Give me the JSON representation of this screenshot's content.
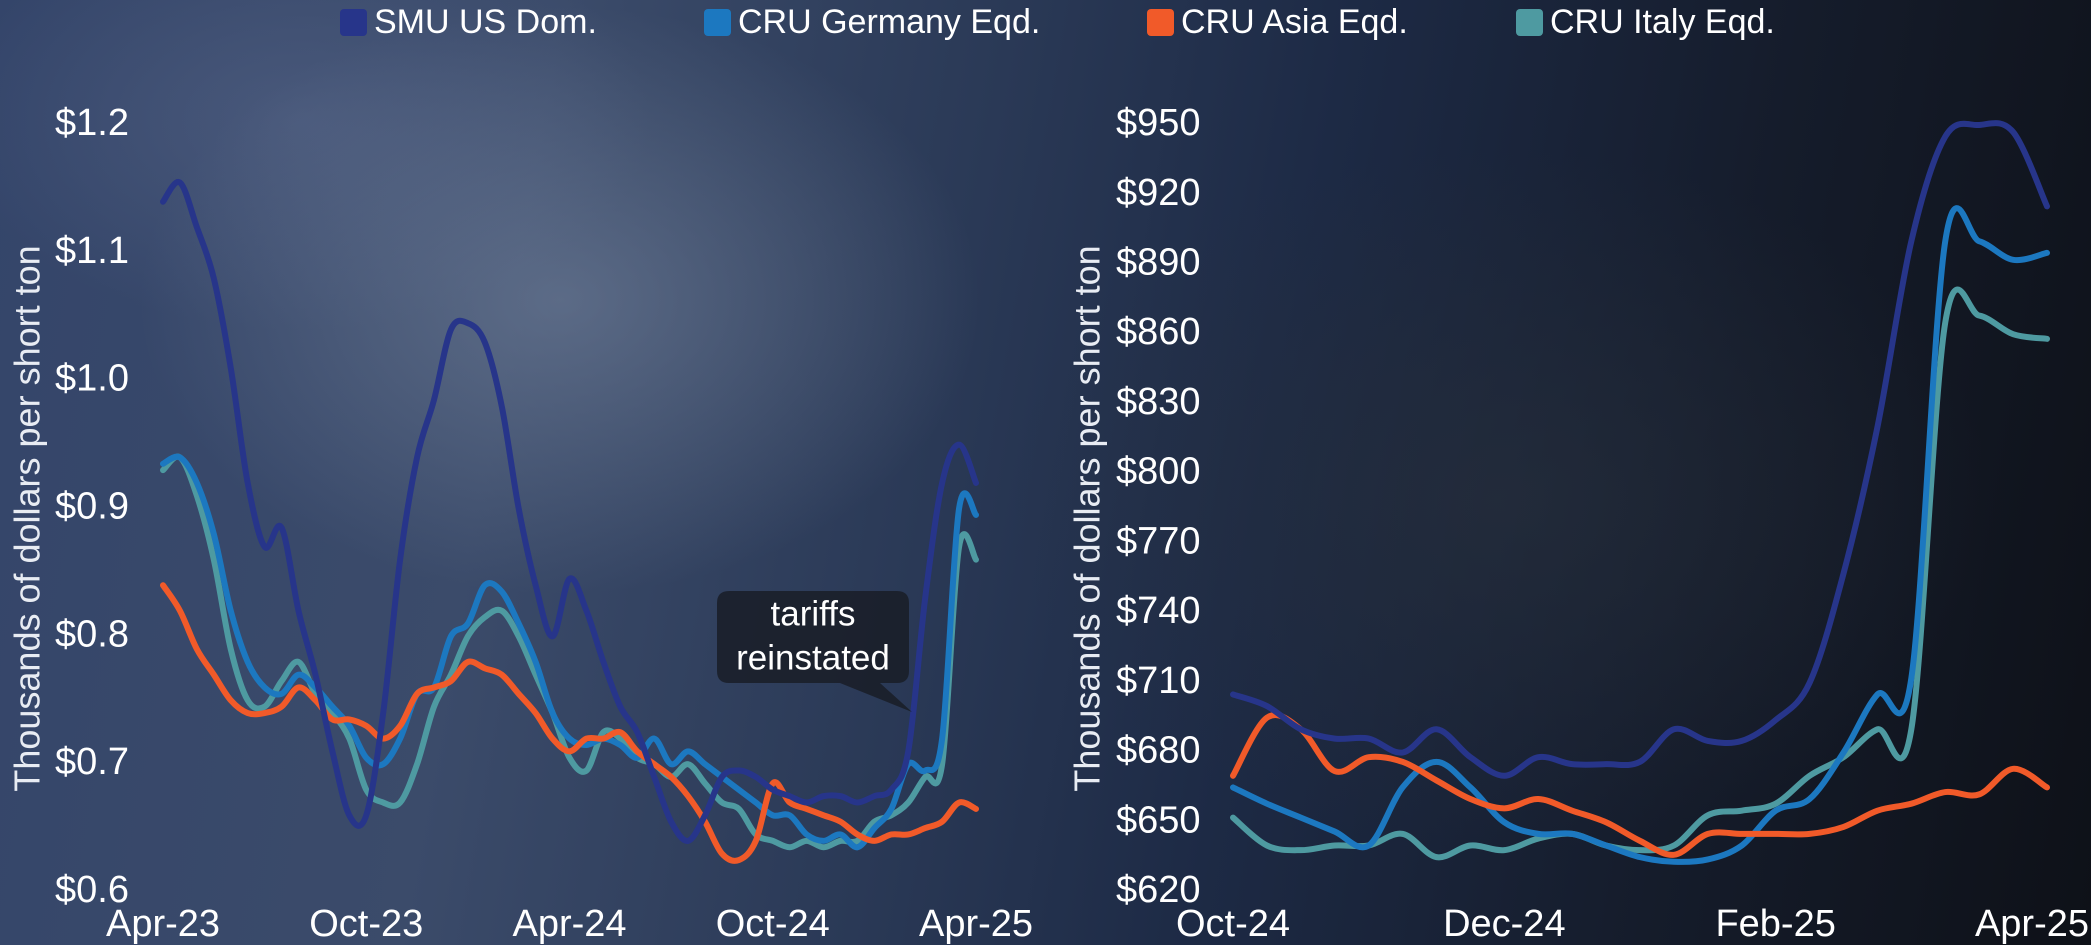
{
  "legend": [
    {
      "name": "SMU US Dom.",
      "color": "#27358a"
    },
    {
      "name": "CRU Germany Eqd.",
      "color": "#1c78c0"
    },
    {
      "name": "CRU Asia Eqd.",
      "color": "#f15a29"
    },
    {
      "name": "CRU Italy Eqd.",
      "color": "#4e9aa1"
    }
  ],
  "chart_data": [
    {
      "type": "line",
      "y_label": "Thousands of dollars per short ton",
      "annotation": [
        "tariffs",
        "reinstated"
      ],
      "x": [
        0,
        0.5,
        1,
        1.5,
        2,
        2.5,
        3,
        3.5,
        4,
        4.5,
        5,
        5.5,
        6,
        6.5,
        7,
        7.5,
        8,
        8.5,
        9,
        9.5,
        10,
        10.5,
        11,
        11.5,
        12,
        12.5,
        13,
        13.5,
        14,
        14.5,
        15,
        15.5,
        16,
        16.5,
        17,
        17.5,
        18,
        18.5,
        19,
        19.5,
        20,
        20.5,
        21,
        21.5,
        22,
        22.5,
        23,
        23.5,
        24
      ],
      "xlim": [
        0,
        24
      ],
      "xticks": [
        {
          "value": 0,
          "label": "Apr-23"
        },
        {
          "value": 6,
          "label": "Oct-23"
        },
        {
          "value": 12,
          "label": "Apr-24"
        },
        {
          "value": 18,
          "label": "Oct-24"
        },
        {
          "value": 24,
          "label": "Apr-25"
        }
      ],
      "ylim": [
        0.6,
        1.2
      ],
      "yticks": [
        {
          "value": 0.6,
          "label": "$0.6"
        },
        {
          "value": 0.7,
          "label": "$0.7"
        },
        {
          "value": 0.8,
          "label": "$0.8"
        },
        {
          "value": 0.9,
          "label": "$0.9"
        },
        {
          "value": 1.0,
          "label": "$1.0"
        },
        {
          "value": 1.1,
          "label": "$1.1"
        },
        {
          "value": 1.2,
          "label": "$1.2"
        }
      ],
      "series": [
        {
          "values": [
            1.14,
            1.155,
            1.12,
            1.08,
            1.01,
            0.92,
            0.87,
            0.885,
            0.82,
            0.77,
            0.71,
            0.66,
            0.66,
            0.74,
            0.86,
            0.94,
            0.985,
            1.04,
            1.045,
            1.03,
            0.98,
            0.9,
            0.84,
            0.8,
            0.845,
            0.82,
            0.78,
            0.745,
            0.725,
            0.69,
            0.655,
            0.64,
            0.66,
            0.69,
            0.695,
            0.69,
            0.68,
            0.675,
            0.67,
            0.675,
            0.675,
            0.67,
            0.675,
            0.68,
            0.71,
            0.83,
            0.92,
            0.95,
            0.92
          ]
        },
        {
          "values": [
            0.935,
            0.94,
            0.92,
            0.88,
            0.82,
            0.78,
            0.76,
            0.755,
            0.77,
            0.76,
            0.745,
            0.73,
            0.705,
            0.7,
            0.72,
            0.755,
            0.76,
            0.8,
            0.81,
            0.84,
            0.835,
            0.81,
            0.78,
            0.74,
            0.72,
            0.715,
            0.72,
            0.715,
            0.705,
            0.72,
            0.7,
            0.71,
            0.7,
            0.69,
            0.68,
            0.67,
            0.66,
            0.66,
            0.645,
            0.64,
            0.645,
            0.635,
            0.65,
            0.665,
            0.7,
            0.695,
            0.72,
            0.9,
            0.895
          ]
        },
        {
          "values": [
            0.84,
            0.82,
            0.79,
            0.77,
            0.75,
            0.74,
            0.74,
            0.745,
            0.76,
            0.75,
            0.735,
            0.735,
            0.73,
            0.72,
            0.73,
            0.755,
            0.76,
            0.765,
            0.78,
            0.775,
            0.77,
            0.755,
            0.74,
            0.72,
            0.71,
            0.72,
            0.72,
            0.725,
            0.71,
            0.7,
            0.69,
            0.675,
            0.655,
            0.63,
            0.625,
            0.64,
            0.685,
            0.67,
            0.665,
            0.66,
            0.655,
            0.645,
            0.64,
            0.645,
            0.645,
            0.65,
            0.655,
            0.67,
            0.665
          ]
        },
        {
          "values": [
            0.93,
            0.94,
            0.91,
            0.86,
            0.79,
            0.75,
            0.745,
            0.765,
            0.78,
            0.755,
            0.74,
            0.72,
            0.68,
            0.67,
            0.67,
            0.7,
            0.745,
            0.77,
            0.8,
            0.815,
            0.82,
            0.8,
            0.77,
            0.74,
            0.705,
            0.695,
            0.725,
            0.72,
            0.705,
            0.7,
            0.69,
            0.7,
            0.685,
            0.67,
            0.665,
            0.645,
            0.64,
            0.635,
            0.64,
            0.635,
            0.64,
            0.64,
            0.655,
            0.66,
            0.67,
            0.69,
            0.7,
            0.87,
            0.86
          ]
        }
      ]
    },
    {
      "type": "line",
      "y_label": "Thousands of dollars per short ton",
      "x": [
        0,
        0.25,
        0.5,
        0.75,
        1,
        1.25,
        1.5,
        1.75,
        2,
        2.25,
        2.5,
        2.75,
        3,
        3.25,
        3.5,
        3.75,
        4,
        4.25,
        4.5,
        4.75,
        5,
        5.25,
        5.5,
        5.75,
        6
      ],
      "xlim": [
        0,
        6
      ],
      "xticks": [
        {
          "value": 0,
          "label": "Oct-24"
        },
        {
          "value": 2,
          "label": "Dec-24"
        },
        {
          "value": 4,
          "label": "Feb-25"
        },
        {
          "value": 6,
          "label": "Apr-25"
        }
      ],
      "ylim": [
        620,
        950
      ],
      "yticks": [
        {
          "value": 620,
          "label": "$620"
        },
        {
          "value": 650,
          "label": "$650"
        },
        {
          "value": 680,
          "label": "$680"
        },
        {
          "value": 710,
          "label": "$710"
        },
        {
          "value": 740,
          "label": "$740"
        },
        {
          "value": 770,
          "label": "$770"
        },
        {
          "value": 800,
          "label": "$800"
        },
        {
          "value": 830,
          "label": "$830"
        },
        {
          "value": 860,
          "label": "$860"
        },
        {
          "value": 890,
          "label": "$890"
        },
        {
          "value": 920,
          "label": "$920"
        },
        {
          "value": 950,
          "label": "$950"
        }
      ],
      "series": [
        {
          "values": [
            705,
            700,
            690,
            686,
            686,
            680,
            690,
            678,
            670,
            678,
            675,
            675,
            676,
            690,
            685,
            685,
            694,
            710,
            757,
            820,
            900,
            945,
            950,
            947,
            915
          ]
        },
        {
          "values": [
            665,
            658,
            652,
            646,
            640,
            665,
            676,
            665,
            650,
            645,
            645,
            640,
            635,
            633,
            634,
            640,
            655,
            660,
            680,
            705,
            712,
            900,
            900,
            892,
            895
          ]
        },
        {
          "values": [
            670,
            695,
            690,
            672,
            678,
            676,
            668,
            660,
            656,
            660,
            655,
            650,
            642,
            636,
            645,
            645,
            645,
            645,
            648,
            655,
            658,
            663,
            662,
            673,
            665
          ]
        },
        {
          "values": [
            652,
            640,
            638,
            640,
            640,
            645,
            635,
            640,
            638,
            643,
            645,
            640,
            638,
            640,
            653,
            655,
            658,
            670,
            678,
            690,
            690,
            865,
            868,
            860,
            858
          ]
        }
      ]
    }
  ]
}
